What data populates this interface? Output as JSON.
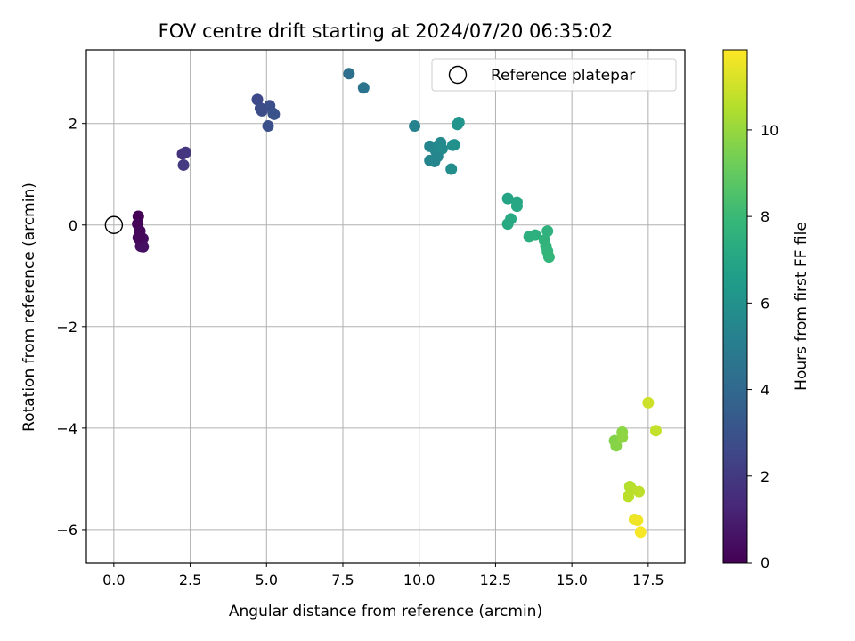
{
  "chart_data": {
    "type": "scatter",
    "title": "FOV centre drift starting at 2024/07/20 06:35:02",
    "xlabel": "Angular distance from reference (arcmin)",
    "ylabel": "Rotation from reference (arcmin)",
    "xlim": [
      -0.9,
      18.7
    ],
    "ylim": [
      -6.65,
      3.45
    ],
    "xticks": [
      0.0,
      2.5,
      5.0,
      7.5,
      10.0,
      12.5,
      15.0,
      17.5
    ],
    "xtick_labels": [
      "0.0",
      "2.5",
      "5.0",
      "7.5",
      "10.0",
      "12.5",
      "15.0",
      "17.5"
    ],
    "yticks": [
      2,
      0,
      -2,
      -4,
      -6
    ],
    "ytick_labels": [
      "2",
      "0",
      "−2",
      "−4",
      "−6"
    ],
    "grid": true,
    "legend": {
      "placement": "top-right",
      "entries": [
        "Reference platepar"
      ]
    },
    "reference_point": {
      "x": 0.0,
      "y": 0.0,
      "label": "Reference platepar"
    },
    "colorbar": {
      "label": "Hours from first FF file",
      "range": [
        0,
        11.85
      ],
      "ticks": [
        0,
        2,
        4,
        6,
        8,
        10
      ],
      "tick_labels": [
        "0",
        "2",
        "4",
        "6",
        "8",
        "10"
      ],
      "colormap": "viridis"
    },
    "points": [
      {
        "x": 0.8,
        "y": 0.17,
        "c": 0.0
      },
      {
        "x": 0.78,
        "y": 0.02,
        "c": 0.1
      },
      {
        "x": 0.85,
        "y": -0.12,
        "c": 0.2
      },
      {
        "x": 0.82,
        "y": -0.27,
        "c": 0.3
      },
      {
        "x": 0.95,
        "y": -0.27,
        "c": 0.35
      },
      {
        "x": 0.9,
        "y": -0.35,
        "c": 0.4
      },
      {
        "x": 0.88,
        "y": -0.42,
        "c": 0.45
      },
      {
        "x": 0.96,
        "y": -0.43,
        "c": 0.5
      },
      {
        "x": 0.8,
        "y": -0.25,
        "c": 0.25
      },
      {
        "x": 2.25,
        "y": 1.4,
        "c": 1.8
      },
      {
        "x": 2.35,
        "y": 1.43,
        "c": 1.9
      },
      {
        "x": 2.28,
        "y": 1.18,
        "c": 2.0
      },
      {
        "x": 4.7,
        "y": 2.47,
        "c": 2.6
      },
      {
        "x": 4.8,
        "y": 2.3,
        "c": 2.7
      },
      {
        "x": 4.85,
        "y": 2.25,
        "c": 2.75
      },
      {
        "x": 5.1,
        "y": 2.35,
        "c": 2.85
      },
      {
        "x": 5.22,
        "y": 2.2,
        "c": 2.95
      },
      {
        "x": 5.25,
        "y": 2.18,
        "c": 3.0
      },
      {
        "x": 5.05,
        "y": 1.95,
        "c": 2.9
      },
      {
        "x": 7.7,
        "y": 2.98,
        "c": 4.3
      },
      {
        "x": 8.18,
        "y": 2.7,
        "c": 4.5
      },
      {
        "x": 9.85,
        "y": 1.95,
        "c": 5.3
      },
      {
        "x": 10.35,
        "y": 1.55,
        "c": 5.5
      },
      {
        "x": 10.55,
        "y": 1.45,
        "c": 5.55
      },
      {
        "x": 10.65,
        "y": 1.58,
        "c": 5.6
      },
      {
        "x": 10.7,
        "y": 1.62,
        "c": 5.65
      },
      {
        "x": 10.75,
        "y": 1.5,
        "c": 5.7
      },
      {
        "x": 10.6,
        "y": 1.35,
        "c": 5.5
      },
      {
        "x": 10.35,
        "y": 1.27,
        "c": 5.4
      },
      {
        "x": 10.5,
        "y": 1.25,
        "c": 5.45
      },
      {
        "x": 11.05,
        "y": 1.1,
        "c": 5.8
      },
      {
        "x": 11.1,
        "y": 1.57,
        "c": 5.9
      },
      {
        "x": 11.15,
        "y": 1.58,
        "c": 5.95
      },
      {
        "x": 11.25,
        "y": 1.98,
        "c": 6.1
      },
      {
        "x": 11.3,
        "y": 2.02,
        "c": 6.15
      },
      {
        "x": 12.9,
        "y": 0.52,
        "c": 6.9
      },
      {
        "x": 13.2,
        "y": 0.45,
        "c": 7.0
      },
      {
        "x": 13.2,
        "y": 0.37,
        "c": 7.05
      },
      {
        "x": 13.0,
        "y": 0.12,
        "c": 7.1
      },
      {
        "x": 12.9,
        "y": 0.02,
        "c": 7.15
      },
      {
        "x": 13.6,
        "y": -0.23,
        "c": 7.4
      },
      {
        "x": 13.8,
        "y": -0.2,
        "c": 7.5
      },
      {
        "x": 14.2,
        "y": -0.12,
        "c": 7.6
      },
      {
        "x": 14.1,
        "y": -0.3,
        "c": 7.65
      },
      {
        "x": 14.15,
        "y": -0.42,
        "c": 7.7
      },
      {
        "x": 14.2,
        "y": -0.52,
        "c": 7.75
      },
      {
        "x": 14.25,
        "y": -0.63,
        "c": 7.8
      },
      {
        "x": 16.4,
        "y": -4.25,
        "c": 9.6
      },
      {
        "x": 16.45,
        "y": -4.35,
        "c": 9.7
      },
      {
        "x": 16.65,
        "y": -4.08,
        "c": 9.8
      },
      {
        "x": 16.65,
        "y": -4.18,
        "c": 9.85
      },
      {
        "x": 17.5,
        "y": -3.5,
        "c": 11.0
      },
      {
        "x": 17.75,
        "y": -4.05,
        "c": 10.8
      },
      {
        "x": 16.9,
        "y": -5.15,
        "c": 10.5
      },
      {
        "x": 16.95,
        "y": -5.2,
        "c": 10.6
      },
      {
        "x": 17.2,
        "y": -5.25,
        "c": 10.7
      },
      {
        "x": 16.85,
        "y": -5.35,
        "c": 10.65
      },
      {
        "x": 17.05,
        "y": -5.8,
        "c": 11.5
      },
      {
        "x": 17.15,
        "y": -5.82,
        "c": 11.6
      },
      {
        "x": 17.25,
        "y": -6.05,
        "c": 11.7
      }
    ]
  }
}
